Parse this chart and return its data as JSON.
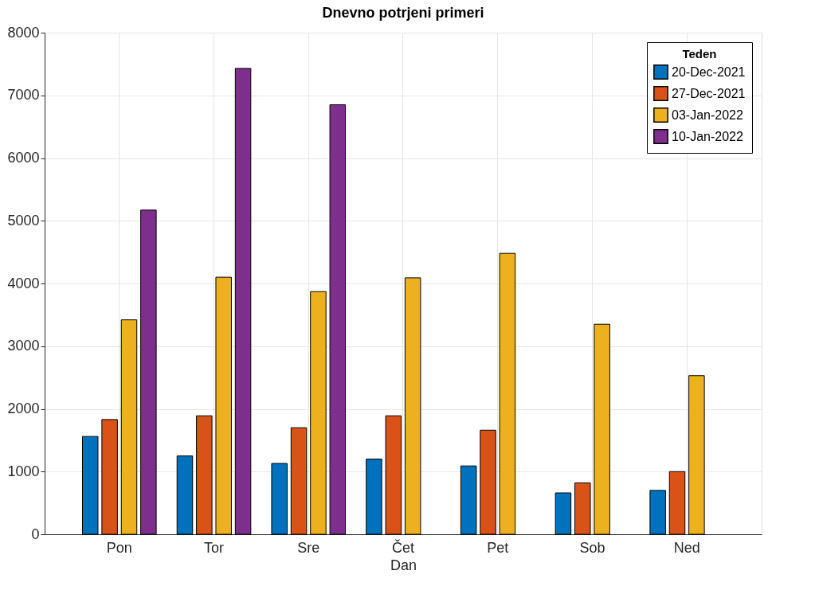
{
  "chart_data": {
    "type": "bar",
    "title": "Dnevno potrjeni primeri",
    "xlabel": "Dan",
    "legend_title": "Teden",
    "categories": [
      "Pon",
      "Tor",
      "Sre",
      "Čet",
      "Pet",
      "Sob",
      "Ned"
    ],
    "series": [
      {
        "name": "20-Dec-2021",
        "color": "#0072bd",
        "values": [
          1560,
          1250,
          1130,
          1200,
          1090,
          660,
          700
        ]
      },
      {
        "name": "27-Dec-2021",
        "color": "#d95319",
        "values": [
          1830,
          1890,
          1700,
          1890,
          1660,
          820,
          1000
        ]
      },
      {
        "name": "03-Jan-2022",
        "color": "#edb120",
        "values": [
          3420,
          4100,
          3870,
          4090,
          4480,
          3350,
          2530
        ]
      },
      {
        "name": "10-Jan-2022",
        "color": "#7e2f8e",
        "values": [
          5170,
          7430,
          6850,
          null,
          null,
          null,
          null
        ]
      }
    ],
    "ylim": [
      0,
      8000
    ],
    "yticks": [
      0,
      1000,
      2000,
      3000,
      4000,
      5000,
      6000,
      7000,
      8000
    ],
    "grid": true,
    "legend": "top right"
  }
}
